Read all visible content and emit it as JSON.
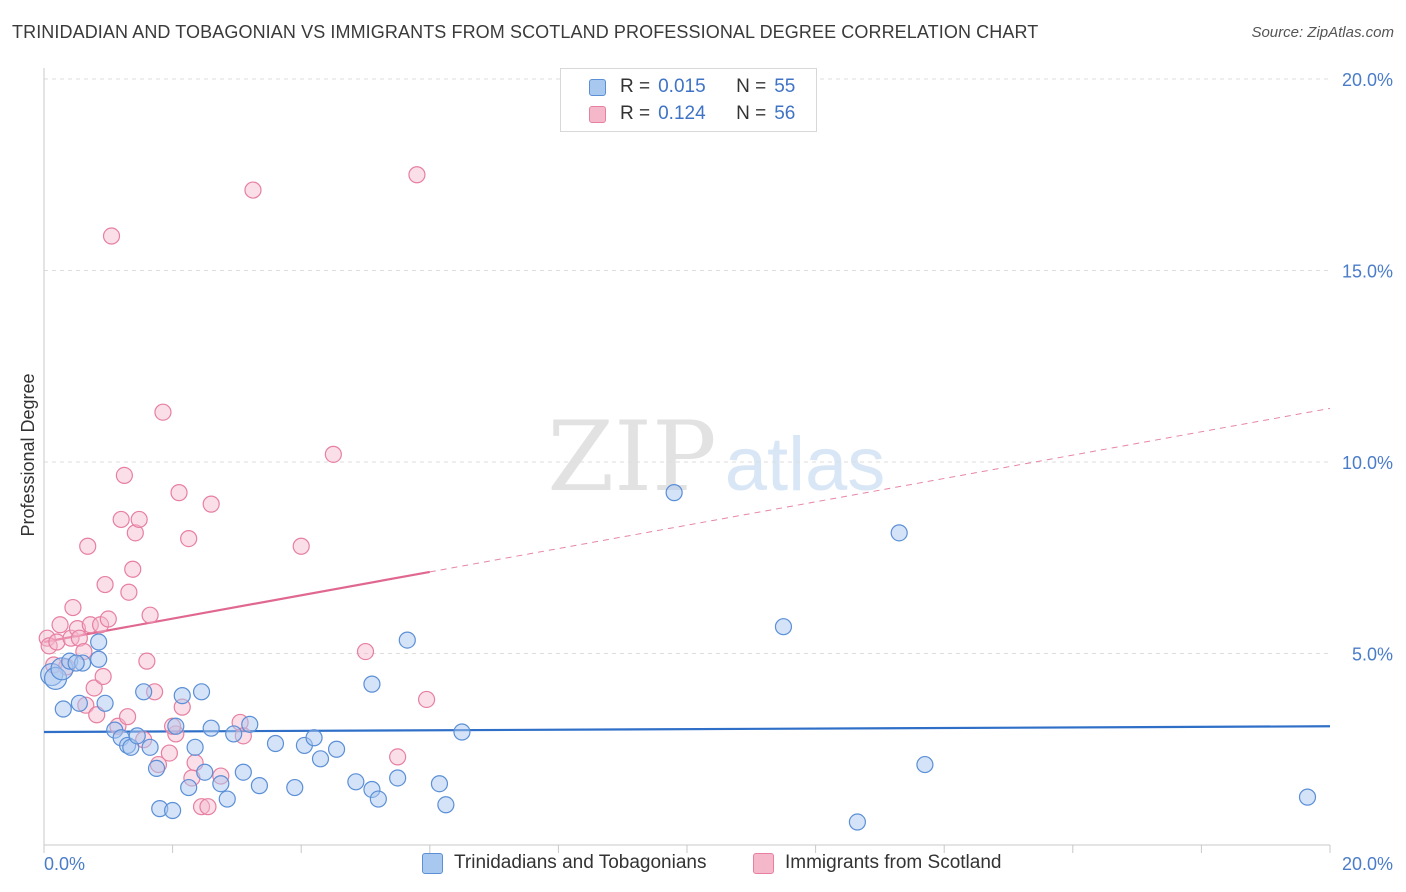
{
  "title": "TRINIDADIAN AND TOBAGONIAN VS IMMIGRANTS FROM SCOTLAND PROFESSIONAL DEGREE CORRELATION CHART",
  "source": "Source: ZipAtlas.com",
  "watermark": {
    "zip": "ZIP",
    "atlas": "atlas"
  },
  "legend_top": {
    "rows": [
      {
        "r_label": "R =",
        "r_value": "0.015",
        "n_label": "N =",
        "n_value": "55"
      },
      {
        "r_label": "R =",
        "r_value": "0.124",
        "n_label": "N =",
        "n_value": "56"
      }
    ]
  },
  "colors": {
    "blue_fill": "#a9c8f0",
    "blue_stroke": "#5b8fd6",
    "blue_line": "#2f6fc8",
    "pink_fill": "#f5b8cb",
    "pink_stroke": "#e77fa0",
    "pink_line": "#e06890",
    "grid": "#dddddd",
    "tick_text": "#4a7cc9"
  },
  "chart_data": {
    "type": "scatter",
    "title": "TRINIDADIAN AND TOBAGONIAN VS IMMIGRANTS FROM SCOTLAND PROFESSIONAL DEGREE CORRELATION CHART",
    "xlabel": "",
    "ylabel": "Professional Degree",
    "xlim": [
      0,
      20
    ],
    "ylim": [
      0,
      20
    ],
    "x_tick_labels": [
      "0.0%",
      "20.0%"
    ],
    "y_ticks": [
      5,
      10,
      15,
      20
    ],
    "y_tick_labels": [
      "5.0%",
      "10.0%",
      "15.0%",
      "20.0%"
    ],
    "grid": "horizontal dashed",
    "legend_position": "top-center and bottom",
    "series": [
      {
        "name": "Trinidadians and Tobagonians",
        "color": "#a9c8f0",
        "trend": {
          "x0": 0,
          "y0": 2.95,
          "x1": 20,
          "y1": 3.1,
          "dashed_from": null
        },
        "points": [
          [
            0.12,
            4.45
          ],
          [
            0.18,
            4.35
          ],
          [
            0.28,
            4.6
          ],
          [
            0.4,
            4.8
          ],
          [
            0.6,
            4.75
          ],
          [
            0.3,
            3.55
          ],
          [
            0.55,
            3.7
          ],
          [
            0.85,
            5.3
          ],
          [
            0.85,
            4.85
          ],
          [
            0.95,
            3.7
          ],
          [
            1.1,
            3.0
          ],
          [
            1.2,
            2.8
          ],
          [
            1.3,
            2.6
          ],
          [
            1.35,
            2.55
          ],
          [
            1.45,
            2.85
          ],
          [
            1.55,
            4.0
          ],
          [
            1.65,
            2.55
          ],
          [
            1.75,
            2.0
          ],
          [
            1.8,
            0.95
          ],
          [
            2.0,
            0.9
          ],
          [
            2.05,
            3.1
          ],
          [
            2.15,
            3.9
          ],
          [
            2.25,
            1.5
          ],
          [
            2.35,
            2.55
          ],
          [
            2.45,
            4.0
          ],
          [
            2.5,
            1.9
          ],
          [
            2.6,
            3.05
          ],
          [
            2.75,
            1.6
          ],
          [
            2.85,
            1.2
          ],
          [
            2.95,
            2.9
          ],
          [
            3.1,
            1.9
          ],
          [
            3.2,
            3.15
          ],
          [
            3.35,
            1.55
          ],
          [
            3.6,
            2.65
          ],
          [
            3.9,
            1.5
          ],
          [
            4.05,
            2.6
          ],
          [
            4.2,
            2.8
          ],
          [
            4.3,
            2.25
          ],
          [
            4.55,
            2.5
          ],
          [
            4.85,
            1.65
          ],
          [
            5.1,
            4.2
          ],
          [
            5.1,
            1.45
          ],
          [
            5.2,
            1.2
          ],
          [
            5.5,
            1.75
          ],
          [
            5.65,
            5.35
          ],
          [
            6.15,
            1.6
          ],
          [
            6.25,
            1.05
          ],
          [
            6.5,
            2.95
          ],
          [
            9.8,
            9.2
          ],
          [
            11.5,
            5.7
          ],
          [
            12.65,
            0.6
          ],
          [
            13.3,
            8.15
          ],
          [
            13.7,
            2.1
          ],
          [
            19.65,
            1.25
          ],
          [
            0.5,
            4.75
          ]
        ]
      },
      {
        "name": "Immigrants from Scotland",
        "color": "#f5b8cb",
        "trend": {
          "x0": 0,
          "y0": 5.3,
          "x1": 20,
          "y1": 11.4,
          "dashed_from": 6.0
        },
        "points": [
          [
            0.05,
            5.4
          ],
          [
            0.08,
            5.2
          ],
          [
            0.15,
            4.7
          ],
          [
            0.2,
            5.3
          ],
          [
            0.25,
            5.75
          ],
          [
            0.35,
            4.65
          ],
          [
            0.42,
            5.4
          ],
          [
            0.45,
            6.2
          ],
          [
            0.52,
            5.65
          ],
          [
            0.55,
            5.4
          ],
          [
            0.62,
            5.05
          ],
          [
            0.65,
            3.65
          ],
          [
            0.68,
            7.8
          ],
          [
            0.72,
            5.75
          ],
          [
            0.78,
            4.1
          ],
          [
            0.82,
            3.4
          ],
          [
            0.88,
            5.75
          ],
          [
            0.92,
            4.4
          ],
          [
            0.95,
            6.8
          ],
          [
            1.0,
            5.9
          ],
          [
            1.05,
            15.9
          ],
          [
            1.15,
            3.1
          ],
          [
            1.2,
            8.5
          ],
          [
            1.25,
            9.65
          ],
          [
            1.32,
            6.6
          ],
          [
            1.38,
            7.2
          ],
          [
            1.42,
            8.15
          ],
          [
            1.48,
            8.5
          ],
          [
            1.55,
            2.75
          ],
          [
            1.6,
            4.8
          ],
          [
            1.65,
            6.0
          ],
          [
            1.72,
            4.0
          ],
          [
            1.78,
            2.1
          ],
          [
            1.85,
            11.3
          ],
          [
            1.95,
            2.4
          ],
          [
            2.05,
            2.9
          ],
          [
            2.1,
            9.2
          ],
          [
            2.15,
            3.6
          ],
          [
            2.25,
            8.0
          ],
          [
            2.3,
            1.75
          ],
          [
            2.35,
            2.15
          ],
          [
            2.45,
            1.0
          ],
          [
            2.55,
            1.0
          ],
          [
            2.6,
            8.9
          ],
          [
            2.75,
            1.8
          ],
          [
            3.05,
            3.2
          ],
          [
            3.1,
            2.85
          ],
          [
            3.25,
            17.1
          ],
          [
            4.0,
            7.8
          ],
          [
            4.5,
            10.2
          ],
          [
            5.0,
            5.05
          ],
          [
            5.5,
            2.3
          ],
          [
            5.8,
            17.5
          ],
          [
            5.95,
            3.8
          ],
          [
            2.0,
            3.1
          ],
          [
            1.3,
            3.35
          ]
        ]
      }
    ]
  },
  "bottom_legend": {
    "items": [
      {
        "label": "Trinidadians and Tobagonians"
      },
      {
        "label": "Immigrants from Scotland"
      }
    ]
  }
}
